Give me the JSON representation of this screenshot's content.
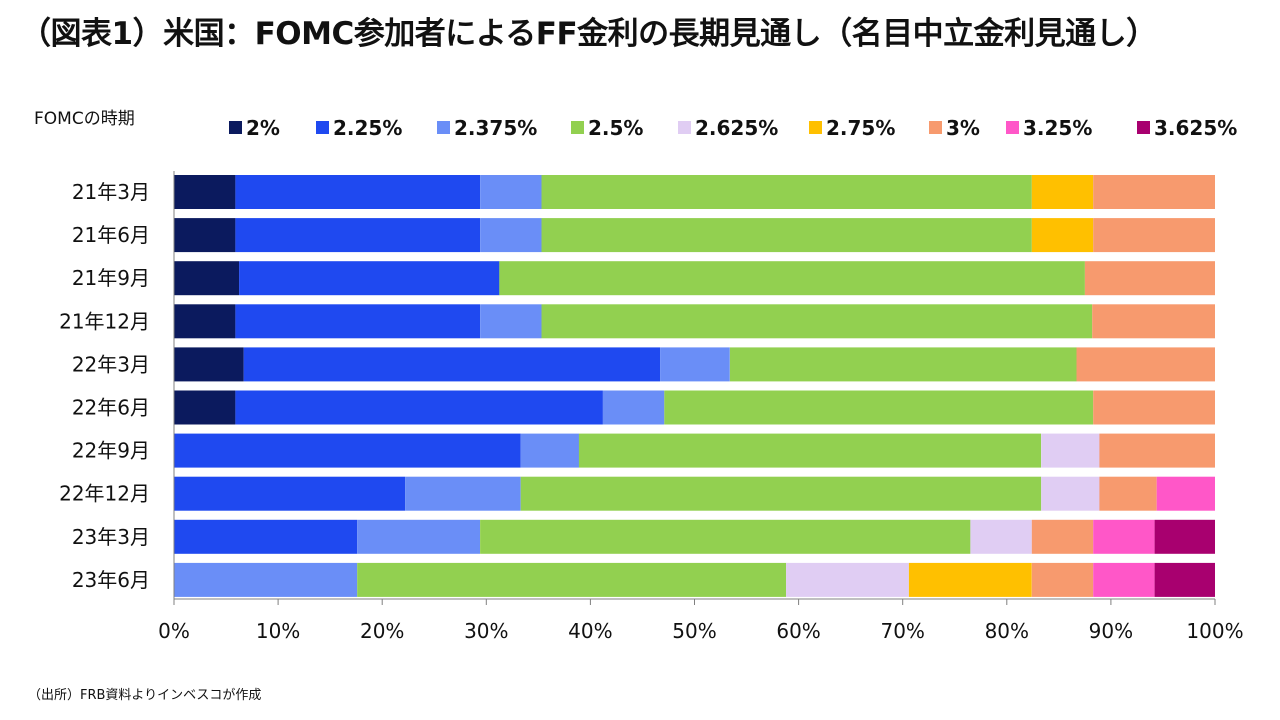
{
  "title": "（図表1）米国：FOMC参加者によるFF金利の長期見通し（名目中立金利見通し）",
  "source": "（出所）FRB資料よりインベスコが作成",
  "chart_data": {
    "type": "bar",
    "orientation": "horizontal",
    "stacked": true,
    "normalized": true,
    "title": "（図表1）米国：FOMC参加者によるFF金利の長期見通し（名目中立金利見通し）",
    "category_axis_label": "FOMCの時期",
    "categories": [
      "21年3月",
      "21年6月",
      "21年9月",
      "21年12月",
      "22年3月",
      "22年6月",
      "22年9月",
      "22年12月",
      "23年3月",
      "23年6月"
    ],
    "xlim": [
      0,
      100
    ],
    "xticks": [
      "0%",
      "10%",
      "20%",
      "30%",
      "40%",
      "50%",
      "60%",
      "70%",
      "80%",
      "90%",
      "100%"
    ],
    "legend_position": "top",
    "grid": false,
    "series": [
      {
        "name": "2%",
        "color": "#0b1a5e",
        "values": [
          5.9,
          5.9,
          6.25,
          5.9,
          6.7,
          5.9,
          0,
          0,
          0,
          0
        ]
      },
      {
        "name": "2.25%",
        "color": "#1f49f0",
        "values": [
          23.5,
          23.5,
          25.0,
          23.5,
          40.0,
          35.3,
          33.3,
          22.2,
          17.6,
          0
        ]
      },
      {
        "name": "2.375%",
        "color": "#6a8ef7",
        "values": [
          5.9,
          5.9,
          0,
          5.9,
          6.7,
          5.9,
          5.6,
          11.1,
          11.8,
          17.6
        ]
      },
      {
        "name": "2.5%",
        "color": "#92d050",
        "values": [
          47.1,
          47.1,
          56.25,
          52.9,
          33.3,
          41.2,
          44.4,
          50.0,
          47.1,
          41.2
        ]
      },
      {
        "name": "2.625%",
        "color": "#e0cdf3",
        "values": [
          0,
          0,
          0,
          0,
          0,
          0,
          5.6,
          5.6,
          5.9,
          11.8
        ]
      },
      {
        "name": "2.75%",
        "color": "#ffc000",
        "values": [
          5.9,
          5.9,
          0,
          0,
          0,
          0,
          0,
          0,
          0,
          11.8
        ]
      },
      {
        "name": "3%",
        "color": "#f79a6e",
        "values": [
          11.7,
          11.7,
          12.5,
          11.8,
          13.3,
          11.7,
          11.1,
          5.5,
          5.9,
          5.9
        ]
      },
      {
        "name": "3.25%",
        "color": "#ff57c8",
        "values": [
          0,
          0,
          0,
          0,
          0,
          0,
          0,
          5.6,
          5.9,
          5.9
        ]
      },
      {
        "name": "3.625%",
        "color": "#a8006f",
        "values": [
          0,
          0,
          0,
          0,
          0,
          0,
          0,
          0,
          5.8,
          5.8
        ]
      }
    ]
  }
}
